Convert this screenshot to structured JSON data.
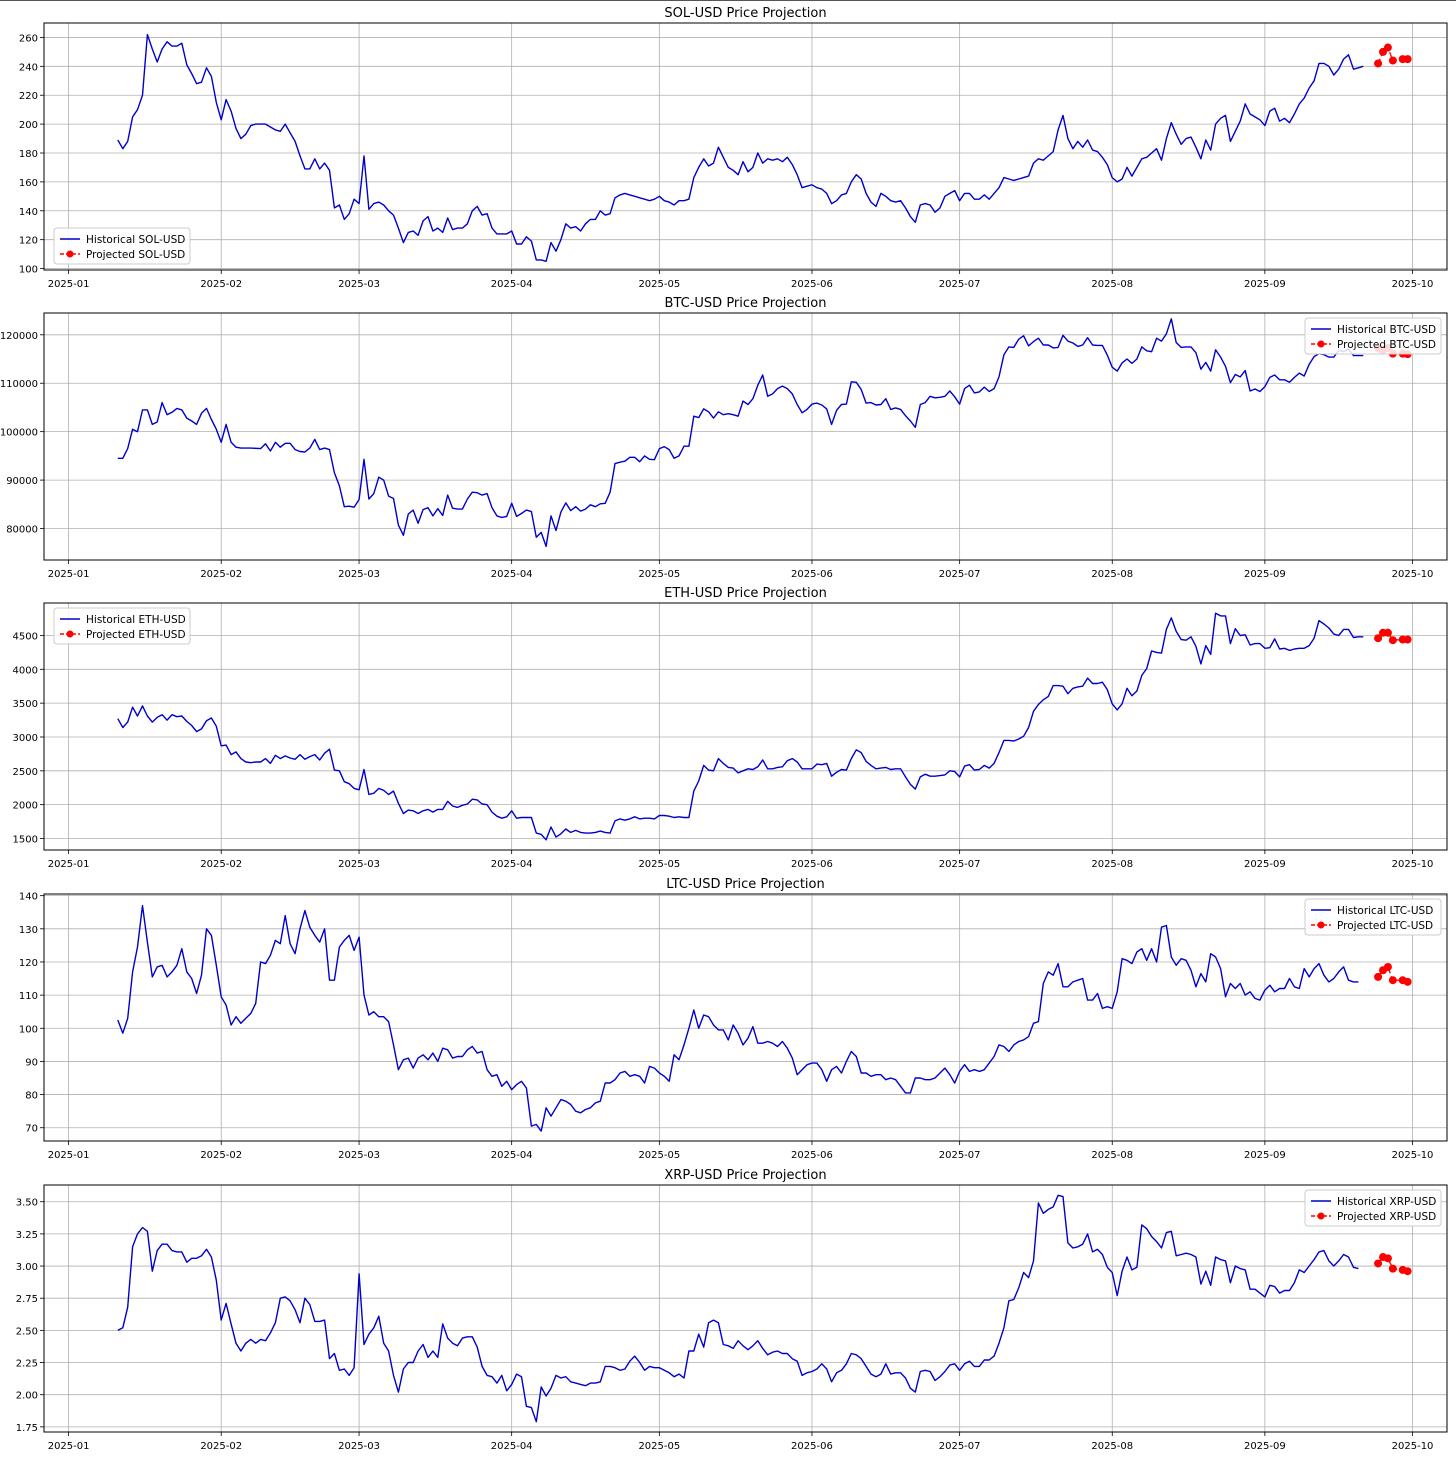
{
  "chart_data": [
    {
      "type": "line",
      "title": "SOL-USD Price Projection",
      "legend_placement": "lower-left",
      "grid": true,
      "x_ticks": [
        "2025-01",
        "2025-02",
        "2025-03",
        "2025-04",
        "2025-05",
        "2025-06",
        "2025-07",
        "2025-08",
        "2025-09",
        "2025-10"
      ],
      "ylim": [
        99,
        270
      ],
      "y_ticks": [
        100,
        120,
        140,
        160,
        180,
        200,
        220,
        240,
        260
      ],
      "y_tick_labels": [
        "100",
        "120",
        "140",
        "160",
        "180",
        "200",
        "220",
        "240",
        "260"
      ],
      "series": [
        {
          "name": "Historical SOL-USD",
          "color": "#0000cc",
          "points": [
            [
              "2025-01-11",
              189
            ],
            [
              "2025-01-13",
              183
            ],
            [
              "2025-01-15",
              188
            ],
            [
              "2025-01-17",
              205
            ],
            [
              "2025-01-19",
              210
            ],
            [
              "2025-01-21",
              220
            ],
            [
              "2025-01-22",
              262
            ],
            [
              "2025-01-24",
              252
            ],
            [
              "2025-01-26",
              243
            ],
            [
              "2025-01-28",
              252
            ],
            [
              "2025-01-30",
              257
            ],
            [
              "2025-02-01",
              254
            ],
            [
              "2025-02-03",
              254
            ],
            [
              "2025-02-05",
              256
            ],
            [
              "2025-02-07",
              241
            ],
            [
              "2025-02-09",
              235
            ],
            [
              "2025-02-11",
              228
            ],
            [
              "2025-02-13",
              229
            ],
            [
              "2025-02-15",
              239
            ],
            [
              "2025-02-17",
              233
            ],
            [
              "2025-02-19",
              215
            ],
            [
              "2025-02-21",
              203
            ],
            [
              "2025-02-23",
              217
            ],
            [
              "2025-02-25",
              209
            ],
            [
              "2025-02-27",
              197
            ],
            [
              "2025-03-01",
              190
            ],
            [
              "2025-03-03",
              193
            ],
            [
              "2025-02-04",
              200
            ],
            [
              "2025-02-07",
              199
            ],
            [
              "2025-02-10",
              200
            ],
            [
              "2025-02-12",
              198
            ],
            [
              "2025-02-14",
              196
            ],
            [
              "2025-02-16",
              195
            ],
            [
              "2025-02-18",
              199
            ],
            [
              "2025-02-20",
              194
            ],
            [
              "2025-02-22",
              188
            ],
            [
              "2025-02-23",
              178
            ],
            [
              "2025-02-25",
              169
            ],
            [
              "2025-02-27",
              169
            ],
            [
              "2025-02-28",
              176
            ],
            [
              "2025-03-01",
              169
            ],
            [
              "2025-03-02",
              173
            ],
            [
              "2025-03-03",
              168
            ]
          ]
        }
      ]
    }
  ]
}
